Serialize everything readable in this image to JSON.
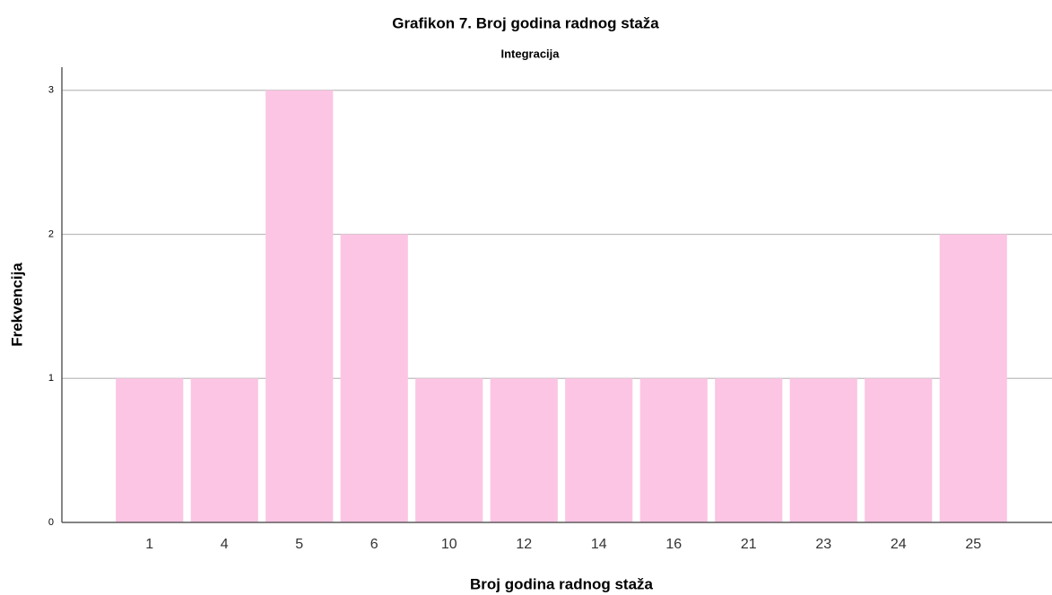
{
  "chart_data": {
    "type": "bar",
    "title": "Grafikon 7. Broj godina radnog staža",
    "subtitle": "Integracija",
    "x_label": "Broj godina radnog staža",
    "y_label": "Frekvencija",
    "categories": [
      "1",
      "4",
      "5",
      "6",
      "10",
      "12",
      "14",
      "16",
      "21",
      "23",
      "24",
      "25"
    ],
    "values": [
      1,
      1,
      3,
      2,
      1,
      1,
      1,
      1,
      1,
      1,
      1,
      2
    ],
    "color": "#fcc5e3",
    "ylim": [
      0,
      3.16
    ],
    "yticks": [
      0,
      1,
      2,
      3
    ],
    "grid": true
  }
}
